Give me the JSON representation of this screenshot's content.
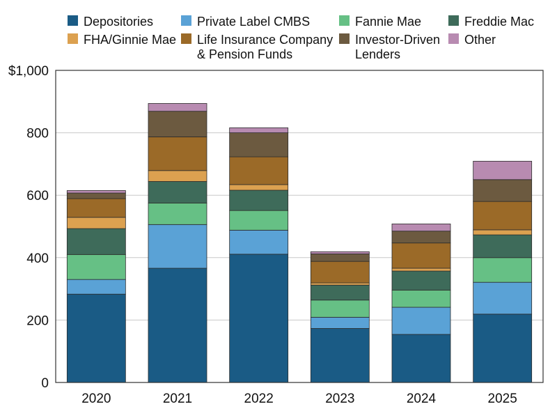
{
  "chart_data": {
    "type": "bar",
    "stacked": true,
    "title": "",
    "xlabel": "",
    "ylabel": "",
    "ylim": [
      0,
      1000
    ],
    "yticks": [
      "0",
      "200",
      "400",
      "600",
      "800",
      "$1,000"
    ],
    "grid": true,
    "legend_position": "top",
    "categories": [
      "2020",
      "2021",
      "2022",
      "2023",
      "2024",
      "2025"
    ],
    "series": [
      {
        "name": "Depositories",
        "color": "#1a5b85",
        "values": [
          283,
          366,
          411,
          173,
          154,
          219
        ]
      },
      {
        "name": "Private Label CMBS",
        "color": "#5aa2d6",
        "values": [
          47,
          140,
          77,
          36,
          87,
          102
        ]
      },
      {
        "name": "Fannie Mae",
        "color": "#66c085",
        "values": [
          80,
          69,
          63,
          55,
          55,
          79
        ]
      },
      {
        "name": "Freddie Mac",
        "color": "#3e6b5a",
        "values": [
          83,
          69,
          65,
          48,
          61,
          73
        ]
      },
      {
        "name": "FHA/Ginnie Mae",
        "color": "#dca150",
        "values": [
          36,
          35,
          18,
          7,
          9,
          16
        ]
      },
      {
        "name": "Life Insurance Company & Pension Funds",
        "color": "#9b6a28",
        "values": [
          60,
          108,
          89,
          69,
          81,
          91
        ]
      },
      {
        "name": "Investor-Driven Lenders",
        "color": "#6c5a40",
        "values": [
          18,
          82,
          77,
          24,
          38,
          70
        ]
      },
      {
        "name": "Other",
        "color": "#b88bb1",
        "values": [
          8,
          25,
          16,
          7,
          23,
          59
        ]
      }
    ]
  },
  "legend_labels": [
    [
      "Depositories"
    ],
    [
      "Private Label CMBS"
    ],
    [
      "Fannie Mae"
    ],
    [
      "Freddie Mac"
    ],
    [
      "FHA/Ginnie Mae"
    ],
    [
      "Life Insurance Company",
      "& Pension Funds"
    ],
    [
      "Investor-Driven",
      "Lenders"
    ],
    [
      "Other"
    ]
  ]
}
